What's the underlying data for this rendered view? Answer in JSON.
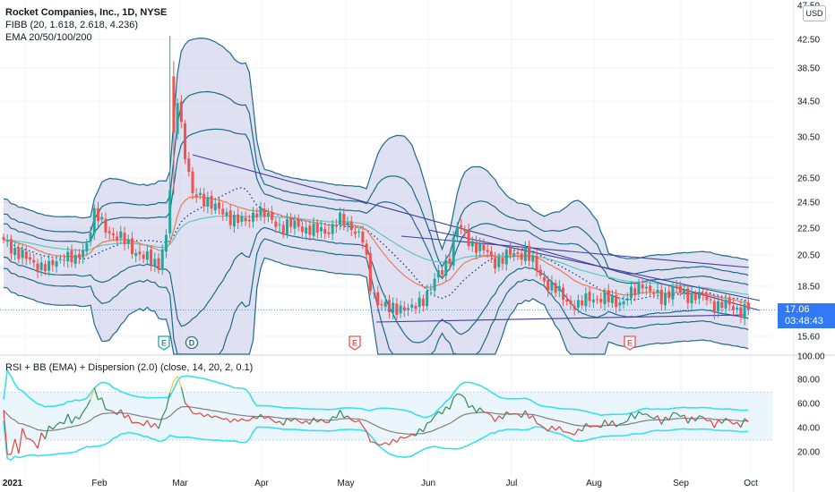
{
  "header": {
    "symbol_line": "Rocket Companies, Inc., 1D, NYSE",
    "indicator_1": "FIBB (20, 1.618, 2.618, 4.236)",
    "indicator_2": "EMA 20/50/100/200",
    "currency": "USD"
  },
  "price_tag": {
    "price": "17.06",
    "countdown": "03:48:43"
  },
  "oscillator": {
    "label": "RSI + BB (EMA) + Dispersion (2.0) (close, 14, 20, 2, 0.1)"
  },
  "colors": {
    "up": "#26a69a",
    "down": "#ef5350",
    "band_fill": "#c9cbe8",
    "band_line": "#1e6b8a",
    "ema20": "#f07a55",
    "ema50": "#5bc8c0",
    "trendline": "#3f3f9a",
    "basis": "#1e3a8a",
    "rsi_band": "#38e0e8",
    "rsi_mid": "#808080",
    "accent": "#3179f5"
  },
  "chart_data": {
    "type": "candlestick",
    "price_scale": "log",
    "ylim": [
      14.6,
      47.5
    ],
    "price_ticks": [
      "47.50",
      "42.50",
      "38.50",
      "34.50",
      "30.50",
      "26.50",
      "24.50",
      "22.50",
      "20.50",
      "18.50",
      "15.60"
    ],
    "x_ticks": [
      "2021",
      "Feb",
      "Mar",
      "Apr",
      "May",
      "Jun",
      "Jul",
      "Aug",
      "Sep",
      "Oct"
    ],
    "events": [
      "E",
      "D",
      "E",
      "E"
    ],
    "key_points": [
      {
        "date": "2021-03-02",
        "high": 43.0,
        "note": "spike high"
      },
      {
        "date": "2021-05-20",
        "low": 16.2
      },
      {
        "date": "2021-06-04",
        "high": 22.7
      },
      {
        "date": "2021-09-24",
        "close": 17.06
      }
    ],
    "oscillator_ticks": [
      "100.00",
      "80.00",
      "60.00",
      "40.00",
      "20.00"
    ],
    "oscillator_ylim": [
      5,
      100
    ],
    "rsi_bands": [
      30,
      70
    ]
  }
}
